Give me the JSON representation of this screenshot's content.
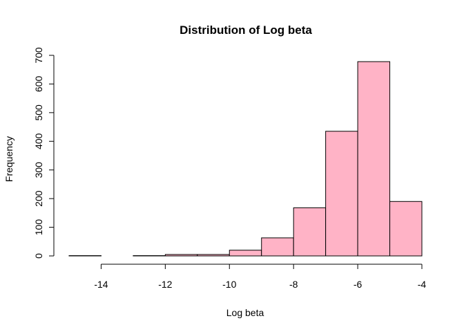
{
  "chart_data": {
    "type": "bar",
    "title": "Distribution of Log beta",
    "xlabel": "Log beta",
    "ylabel": "Frequency",
    "bin_edges": [
      -15,
      -14,
      -13,
      -12,
      -11,
      -10,
      -9,
      -8,
      -7,
      -6,
      -5,
      -4
    ],
    "values": [
      1,
      0,
      1,
      5,
      5,
      20,
      63,
      168,
      435,
      678,
      190
    ],
    "xlim": [
      -15,
      -4
    ],
    "ylim": [
      0,
      700
    ],
    "x_ticks": [
      -14,
      -12,
      -10,
      -8,
      -6,
      -4
    ],
    "y_ticks": [
      0,
      100,
      200,
      300,
      400,
      500,
      600,
      700
    ],
    "bar_color": "#ffb3c6",
    "grid": false
  }
}
